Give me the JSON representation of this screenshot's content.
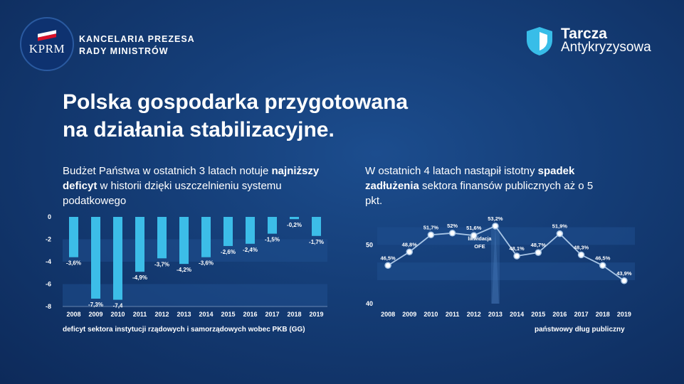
{
  "header": {
    "logo_text": "KPRM",
    "org_line1": "KANCELARIA PREZESA",
    "org_line2": "RADY MINISTRÓW",
    "brand_line1": "Tarcza",
    "brand_line2": "Antykryzysowa"
  },
  "title_line1": "Polska gospodarka przygotowana",
  "title_line2": "na działania stabilizacyjne.",
  "left_text": {
    "part1": "Budżet Państwa w ostatnich 3 latach notuje ",
    "bold": "najniższy deficyt",
    "part2": " w historii dzięki uszczelnieniu systemu podatkowego"
  },
  "right_text": {
    "part1": "W ostatnich 4 latach nastąpił istotny ",
    "bold": "spadek zadłużenia",
    "part2": " sektora finansów publicznych aż o 5 pkt."
  },
  "left_caption": "deficyt sektora instytucji rządowych i samorządowych wobec PKB (GG)",
  "right_caption": "państwowy dług publiczny",
  "colors": {
    "bar": "#3cbde8",
    "line": "#a9c6e6",
    "point": "#ffffff",
    "label": "#ffffff",
    "band": "#1f4f8e",
    "highlight": "#4a7fc0"
  },
  "chart_data": [
    {
      "type": "bar",
      "categories": [
        "2008",
        "2009",
        "2010",
        "2011",
        "2012",
        "2013",
        "2014",
        "2015",
        "2016",
        "2017",
        "2018",
        "2019"
      ],
      "values": [
        -3.6,
        -7.3,
        -7.4,
        -4.9,
        -3.7,
        -4.2,
        -3.6,
        -2.6,
        -2.4,
        -1.5,
        -0.2,
        -1.7
      ],
      "data_labels": [
        "-3,6%",
        "-7,3%",
        "-7,4",
        "-4,9%",
        "-3,7%",
        "-4,2%",
        "-3,6%",
        "-2,6%",
        "-2,4%",
        "-1,5%",
        "-0,2%",
        "-1,7%"
      ],
      "yticks": [
        0,
        -2,
        -4,
        -6,
        -8
      ],
      "ytick_labels": [
        "0",
        "-2",
        "-4",
        "-6",
        "-8"
      ],
      "ylim": [
        -8,
        0
      ]
    },
    {
      "type": "line",
      "categories": [
        "2008",
        "2009",
        "2010",
        "2011",
        "2012",
        "2013",
        "2014",
        "2015",
        "2016",
        "2017",
        "2018",
        "2019"
      ],
      "values": [
        46.5,
        48.8,
        51.7,
        52.0,
        51.6,
        53.2,
        48.1,
        48.7,
        51.9,
        48.3,
        46.5,
        43.9
      ],
      "data_labels": [
        "46,5%",
        "48,8%",
        "51,7%",
        "52%",
        "51,6%",
        "53,2%",
        "48,1%",
        "48,7%",
        "51,9%",
        "48,3%",
        "46,5%",
        "43,9%"
      ],
      "yticks": [
        40,
        50
      ],
      "ytick_labels": [
        "40",
        "50"
      ],
      "ylim": [
        40,
        55
      ],
      "annotation_line1": "likwidacja",
      "annotation_line2": "OFE"
    }
  ]
}
